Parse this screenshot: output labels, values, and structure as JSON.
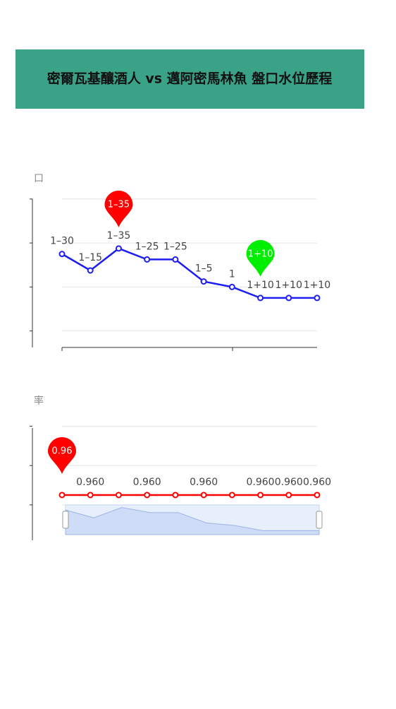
{
  "title": "密爾瓦基釀酒人 vs 邁阿密馬林魚 盤口水位歷程",
  "chart_data": [
    {
      "type": "line",
      "y_name": "口",
      "color": "#1e1ef0",
      "categories": [
        null,
        null,
        null,
        null,
        null,
        null,
        null,
        null,
        null,
        null
      ],
      "values": [
        1.3,
        1.15,
        1.35,
        1.25,
        1.25,
        1.05,
        1,
        0.9,
        0.9,
        0.9
      ],
      "value_labels": [
        "1–30",
        "1–15",
        "1–35",
        "1–25",
        "1–25",
        "1–5",
        "1",
        "1+10",
        "1+10",
        "1+10"
      ],
      "ylim": [
        0.45,
        1.85
      ],
      "yticks": [
        0.6,
        1,
        1.4,
        1.8
      ],
      "grid": true,
      "mark_points": [
        {
          "type": "max",
          "label": "1–35",
          "color": "#ff0000"
        },
        {
          "type": "min",
          "label": "1+10",
          "color": "#00ee00"
        }
      ]
    },
    {
      "type": "line",
      "y_name": "率",
      "color": "#ff0000",
      "categories": [
        null,
        null,
        null,
        null,
        null,
        null,
        null,
        null,
        null,
        null
      ],
      "values": [
        0.96,
        0.96,
        0.96,
        0.96,
        0.96,
        0.96,
        0.96,
        0.96,
        0.96,
        0.96
      ],
      "value_labels": [
        null,
        "0.960",
        null,
        "0.960",
        null,
        "0.960",
        null,
        "0.960",
        "0.960",
        "0.960"
      ],
      "ylim": [
        0.937,
        0.997
      ],
      "yticks": [
        0.955,
        0.975,
        0.995
      ],
      "grid": true,
      "mark_points": [
        {
          "type": "max",
          "label": "0.96",
          "color": "#ff0000"
        }
      ],
      "zoom_slider": true
    }
  ]
}
